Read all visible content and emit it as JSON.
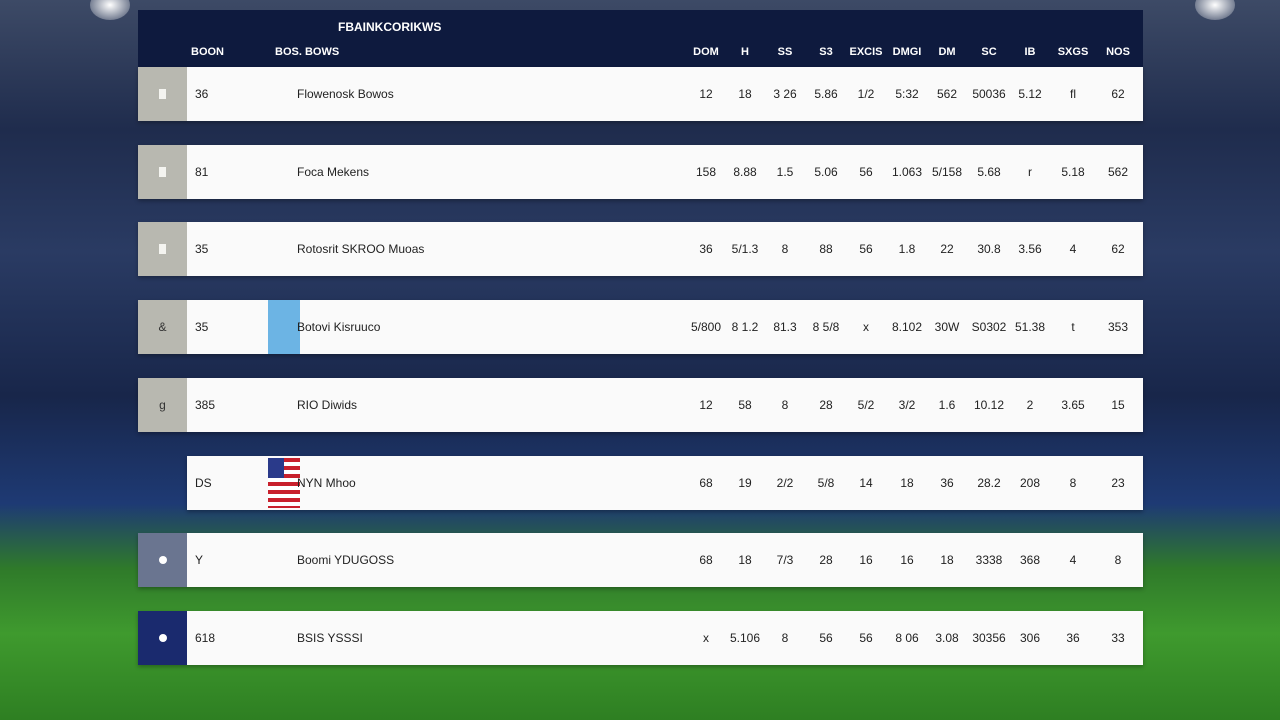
{
  "header": {
    "title": "FBAINKCORIKWS",
    "columns": [
      "BOON",
      "BOS. BOWS",
      "DOM",
      "H",
      "SS",
      "S3",
      "EXCIS",
      "DMGI",
      "DM",
      "SC",
      "IB",
      "SXGS",
      "NOS"
    ]
  },
  "table": {
    "rows": [
      {
        "rank": "36",
        "team": "Flowenosk Bowos",
        "cells": [
          "12",
          "18",
          "3 26",
          "5.86",
          "1/2",
          "5:32",
          "562",
          "50036",
          "5.12",
          "fl",
          "62"
        ]
      },
      {
        "rank": "81",
        "team": "Foca Mekens",
        "cells": [
          "158",
          "8.88",
          "1.5",
          "5.06",
          "56",
          "1.063",
          "5/158",
          "5.68",
          "r",
          "5.18",
          "562"
        ]
      },
      {
        "rank": "35",
        "team": "Rotosrit SKROO Muoas",
        "cells": [
          "36",
          "5/1.3",
          "8",
          "88",
          "56",
          "1.8",
          "22",
          "30.8",
          "3.56",
          "4",
          "62"
        ]
      },
      {
        "badge": "&",
        "rank": "35",
        "team": "Botovi Kisruuco",
        "cells": [
          "5/800",
          "8 1.2",
          "81.3",
          "8 5/8",
          "x",
          "8.102",
          "30W",
          "S0302",
          "51.38",
          "t",
          "353"
        ]
      },
      {
        "badge": "g",
        "rank": "385",
        "team": "RIO Diwids",
        "cells": [
          "12",
          "58",
          "8",
          "28",
          "5/2",
          "3/2",
          "1.6",
          "10.12",
          "2",
          "3.65",
          "15"
        ]
      },
      {
        "rank": "DS",
        "team": "NYN Mhoo",
        "cells": [
          "68",
          "19",
          "2/2",
          "5/8",
          "14",
          "18",
          "36",
          "28.2",
          "208",
          "8",
          "23"
        ]
      },
      {
        "rank": "Y",
        "team": "Boomi YDUGOSS",
        "cells": [
          "68",
          "18",
          "7/3",
          "28",
          "16",
          "16",
          "18",
          "3338",
          "368",
          "4",
          "8"
        ]
      },
      {
        "rank": "618",
        "team": "BSIS YSSSI",
        "cells": [
          "x",
          "5.106",
          "8",
          "56",
          "56",
          "8 06",
          "3.08",
          "30356",
          "306",
          "36",
          "33"
        ]
      }
    ]
  }
}
